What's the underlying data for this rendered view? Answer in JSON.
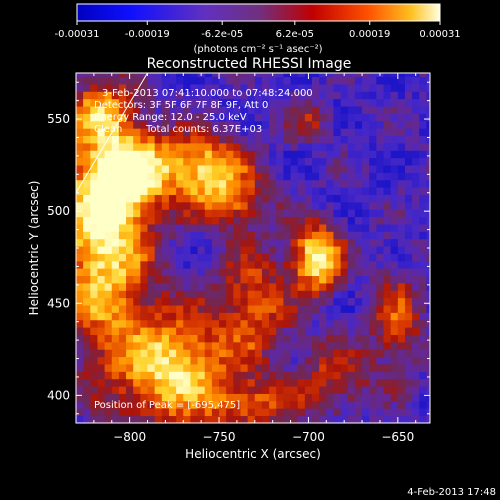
{
  "chart_data": {
    "type": "heatmap",
    "title": "Reconstructed RHESSI Image",
    "xlabel": "Heliocentric X (arcsec)",
    "ylabel": "Heliocentric Y (arcsec)",
    "xlim": [
      -830,
      -632
    ],
    "ylim": [
      385,
      575
    ],
    "xticks": [
      -800,
      -750,
      -700,
      -650
    ],
    "yticks": [
      400,
      450,
      500,
      550
    ],
    "colorbar": {
      "min": -0.00031,
      "max": 0.00031,
      "ticks": [
        "-0.00031",
        "-0.00019",
        "-6.2e-05",
        "6.2e-05",
        "0.00019",
        "0.00031"
      ],
      "tick_values": [
        -0.00031,
        -0.00019,
        -6.2e-05,
        6.2e-05,
        0.00019,
        0.00031
      ],
      "unit_label": "(photons cm⁻² s⁻¹ asec⁻²)"
    },
    "annotations": {
      "time_range": "3-Feb-2013 07:41:10.000 to 07:48:24.000",
      "detectors": "Detectors: 3F 5F 6F 7F 8F 9F, Att 0",
      "energy": "Energy Range: 12.0 - 25.0 keV",
      "algorithm": "Clean",
      "counts": "Total counts: 6.37E+03",
      "peak": "Position of Peak = [-695,475]"
    },
    "peak": {
      "x": -695,
      "y": 475
    },
    "sources": [
      {
        "x": -815,
        "y": 490,
        "sx": 18,
        "sy": 45,
        "amp": 1.0
      },
      {
        "x": -800,
        "y": 520,
        "sx": 15,
        "sy": 15,
        "amp": 0.7
      },
      {
        "x": -775,
        "y": 415,
        "sx": 22,
        "sy": 22,
        "amp": 0.9
      },
      {
        "x": -760,
        "y": 525,
        "sx": 18,
        "sy": 12,
        "amp": 0.85
      },
      {
        "x": -745,
        "y": 505,
        "sx": 14,
        "sy": 10,
        "amp": 0.6
      },
      {
        "x": -730,
        "y": 450,
        "sx": 14,
        "sy": 22,
        "amp": 0.55
      },
      {
        "x": -695,
        "y": 475,
        "sx": 10,
        "sy": 13,
        "amp": 1.0
      },
      {
        "x": -700,
        "y": 548,
        "sx": 10,
        "sy": 8,
        "amp": 0.35
      },
      {
        "x": -685,
        "y": 410,
        "sx": 14,
        "sy": 14,
        "amp": 0.45
      },
      {
        "x": -650,
        "y": 440,
        "sx": 10,
        "sy": 20,
        "amp": 0.5
      },
      {
        "x": -815,
        "y": 555,
        "sx": 12,
        "sy": 10,
        "amp": 0.45
      },
      {
        "x": -730,
        "y": 395,
        "sx": 18,
        "sy": 10,
        "amp": 0.5
      }
    ],
    "limb_line": {
      "x": [
        -830,
        -790
      ],
      "y": [
        510,
        575
      ]
    }
  },
  "footer": {
    "date": "4-Feb-2013 17:48"
  },
  "colors": {
    "background": "#000000",
    "low": "#0000ff",
    "mid": "#8040a0",
    "high": "#ff4000",
    "peak": "#ffffa0"
  }
}
